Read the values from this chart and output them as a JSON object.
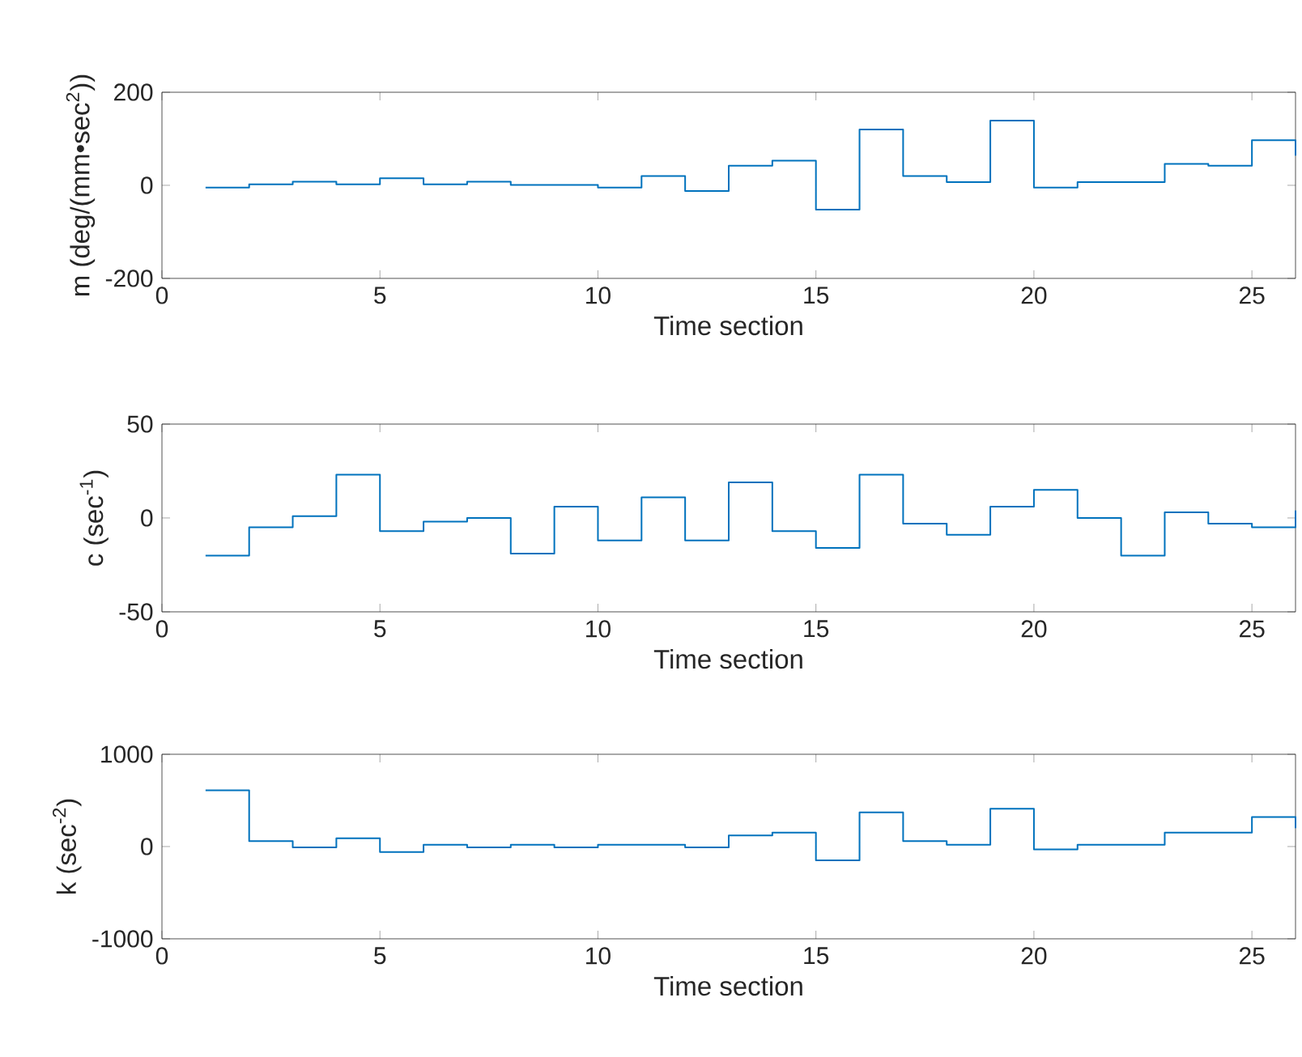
{
  "chart_data": [
    {
      "type": "step",
      "xlabel": "Time section",
      "ylabel": "m (deg/(mm•sec$^{2}$))",
      "color": "#0072bd",
      "xlim": [
        0,
        26
      ],
      "ylim": [
        -200,
        200
      ],
      "xticks": [
        0,
        5,
        10,
        15,
        20,
        25
      ],
      "yticks": [
        -200,
        0,
        200
      ],
      "x": [
        1,
        2,
        3,
        4,
        5,
        6,
        7,
        8,
        9,
        10,
        11,
        12,
        13,
        14,
        15,
        16,
        17,
        18,
        19,
        20,
        21,
        22,
        23,
        24,
        25,
        26
      ],
      "values": [
        -5,
        2,
        8,
        2,
        15,
        2,
        8,
        1,
        1,
        -5,
        20,
        -12,
        42,
        53,
        -52,
        120,
        20,
        7,
        139,
        -5,
        7,
        7,
        46,
        42,
        97,
        64
      ]
    },
    {
      "type": "step",
      "xlabel": "Time section",
      "ylabel": "c (sec$^{-1}$)",
      "color": "#0072bd",
      "xlim": [
        0,
        26
      ],
      "ylim": [
        -50,
        50
      ],
      "xticks": [
        0,
        5,
        10,
        15,
        20,
        25
      ],
      "yticks": [
        -50,
        0,
        50
      ],
      "x": [
        1,
        2,
        3,
        4,
        5,
        6,
        7,
        8,
        9,
        10,
        11,
        12,
        13,
        14,
        15,
        16,
        17,
        18,
        19,
        20,
        21,
        22,
        23,
        24,
        25,
        26
      ],
      "values": [
        -20,
        -5,
        1,
        23,
        -7,
        -2,
        0,
        -19,
        6,
        -12,
        11,
        -12,
        19,
        -7,
        -16,
        23,
        -3,
        -9,
        6,
        15,
        0,
        -20,
        3,
        -3,
        -5,
        4
      ]
    },
    {
      "type": "step",
      "xlabel": "Time section",
      "ylabel": "k (sec$^{-2}$)",
      "color": "#0072bd",
      "xlim": [
        0,
        26
      ],
      "ylim": [
        -1000,
        1000
      ],
      "xticks": [
        0,
        5,
        10,
        15,
        20,
        25
      ],
      "yticks": [
        -1000,
        0,
        1000
      ],
      "x": [
        1,
        2,
        3,
        4,
        5,
        6,
        7,
        8,
        9,
        10,
        11,
        12,
        13,
        14,
        15,
        16,
        17,
        18,
        19,
        20,
        21,
        22,
        23,
        24,
        25,
        26
      ],
      "values": [
        610,
        60,
        -10,
        90,
        -60,
        20,
        -10,
        20,
        -10,
        20,
        20,
        -10,
        120,
        150,
        -150,
        370,
        60,
        20,
        410,
        -30,
        20,
        20,
        150,
        150,
        320,
        200
      ]
    }
  ]
}
